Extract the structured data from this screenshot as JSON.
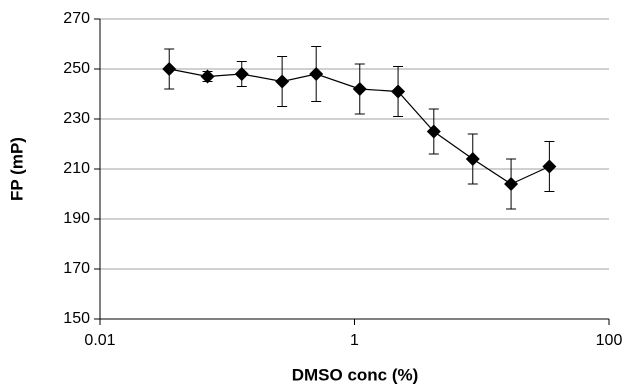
{
  "chart_data": {
    "type": "line",
    "x_label": "DMSO conc (%)",
    "y_label": "FP (mP)",
    "x": [
      0.035,
      0.07,
      0.13,
      0.27,
      0.5,
      1.1,
      2.2,
      4.2,
      8.5,
      17,
      34
    ],
    "values": [
      250,
      247,
      248,
      245,
      248,
      242,
      241,
      225,
      214,
      204,
      211
    ],
    "errors": [
      8,
      2,
      5,
      10,
      11,
      10,
      10,
      9,
      10,
      10,
      10
    ],
    "color": "#000000",
    "xscale": "log",
    "xlim": [
      0.01,
      100
    ],
    "xticks": [
      0.01,
      1,
      100
    ],
    "ylim": [
      150,
      270
    ],
    "yticks": [
      150,
      170,
      190,
      210,
      230,
      250,
      270
    ],
    "grid": true
  }
}
